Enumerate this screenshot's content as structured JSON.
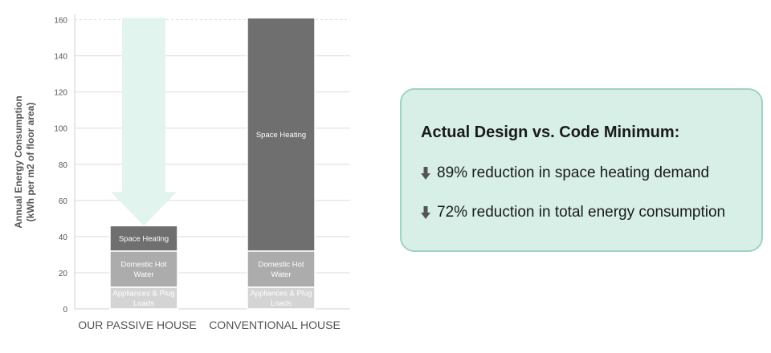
{
  "chart_data": {
    "type": "bar",
    "stacked": true,
    "categories": [
      "OUR PASSIVE HOUSE",
      "CONVENTIONAL HOUSE"
    ],
    "series": [
      {
        "name": "Appliances & Plug Loads",
        "values": [
          12,
          12
        ],
        "color": "#d4d4d4"
      },
      {
        "name": "Domestic Hot Water",
        "values": [
          20,
          20
        ],
        "color": "#acacac"
      },
      {
        "name": "Space Heating",
        "values": [
          14,
          129
        ],
        "color": "#6f6f6f"
      }
    ],
    "segment_labels": {
      "Appliances & Plug Loads": [
        "Appliances & Plug",
        "Loads"
      ],
      "Domestic Hot Water": [
        "Domestic Hot",
        "Water"
      ],
      "Space Heating": [
        "Space Heating"
      ]
    },
    "ylabel": [
      "Annual Energy Consumption",
      "(kWh per m2 of floor area)"
    ],
    "ylim": [
      0,
      162
    ],
    "yticks": [
      0,
      20,
      40,
      60,
      80,
      100,
      120,
      140,
      160
    ],
    "grid": true,
    "accent_arrow_color": "#e2f4ee"
  },
  "callout": {
    "title": "Actual Design vs. Code Minimum:",
    "lines": [
      "89% reduction in space heating demand",
      "72% reduction in total energy consumption"
    ],
    "icon": "down-arrow-icon"
  }
}
